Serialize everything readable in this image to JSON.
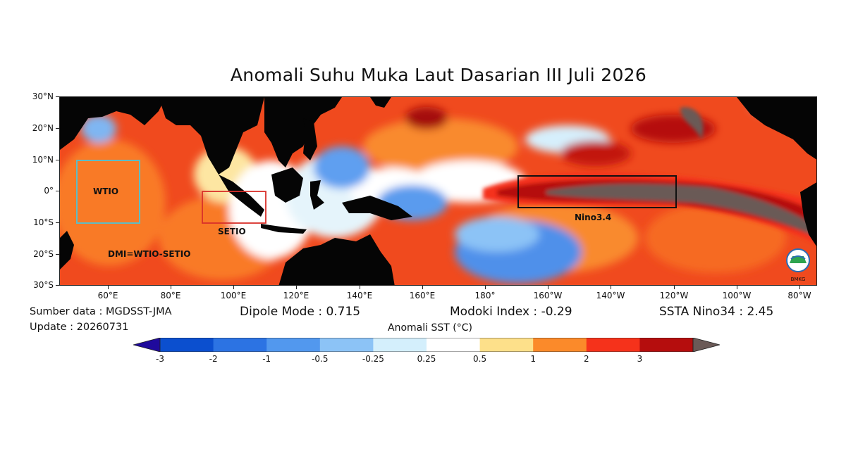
{
  "title": "Anomali Suhu Muka Laut Dasarian III Juli 2026",
  "map": {
    "lat_ticks": [
      "30°N",
      "20°N",
      "10°N",
      "0°",
      "10°S",
      "20°S",
      "30°S"
    ],
    "lon_ticks": [
      "60°E",
      "80°E",
      "100°E",
      "120°E",
      "140°E",
      "160°E",
      "180°",
      "160°W",
      "140°W",
      "120°W",
      "100°W",
      "80°W"
    ],
    "regions": {
      "wtio": {
        "label": "WTIO",
        "color": "#5fbcc4"
      },
      "setio": {
        "label": "SETIO",
        "color": "#d9302a"
      },
      "nino34": {
        "label": "Nino3.4",
        "color": "#111111"
      }
    },
    "dmi_formula": "DMI=WTIO-SETIO",
    "logo_text": "BMKG"
  },
  "info": {
    "source": "Sumber data : MGDSST-JMA",
    "update": "Update : 20260731",
    "dipole_mode": "Dipole Mode : 0.715",
    "modoki_index": "Modoki Index : -0.29",
    "ssta_nino34": "SSTA Nino34 : 2.45"
  },
  "colorbar": {
    "title": "Anomali SST (°C)",
    "tick_labels": [
      "-3",
      "-2",
      "-1",
      "-0.5",
      "-0.25",
      "0.25",
      "0.5",
      "1",
      "2",
      "3"
    ],
    "under_color": "#1f0a9c",
    "over_color": "#6b5a57",
    "colors": [
      "#0b4fcf",
      "#2c73e3",
      "#5298ee",
      "#8cc3f6",
      "#d4effc",
      "#ffffff",
      "#fde08a",
      "#fb8a2a",
      "#f5321b",
      "#b50d0d"
    ]
  }
}
